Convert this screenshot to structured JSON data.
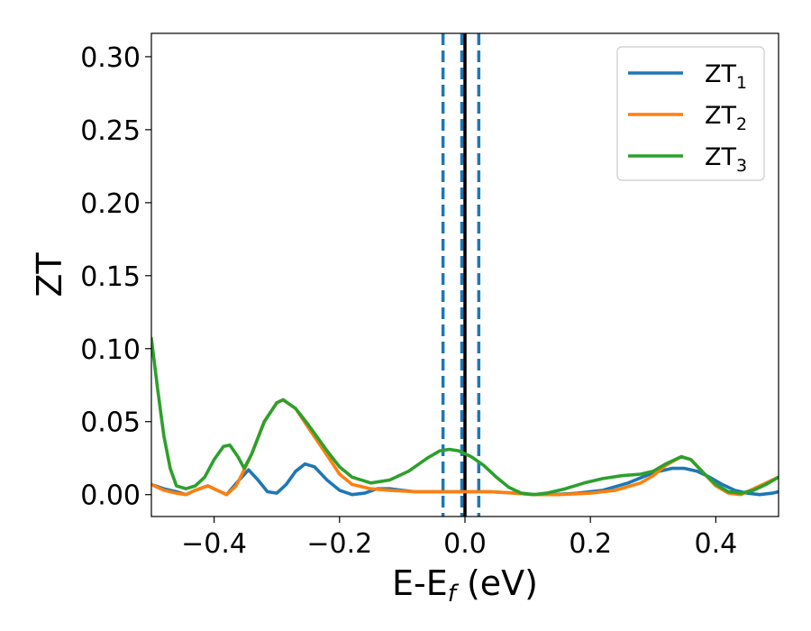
{
  "chart_data": {
    "type": "line",
    "xlabel": {
      "main": "E-E",
      "sub": "f",
      "unit": " (eV)"
    },
    "ylabel": "ZT",
    "xlim": [
      -0.5,
      0.5
    ],
    "ylim": [
      -0.015,
      0.316
    ],
    "x_ticks": [
      {
        "value": -0.4,
        "label": "−0.4"
      },
      {
        "value": -0.2,
        "label": "−0.2"
      },
      {
        "value": 0.0,
        "label": "0.0"
      },
      {
        "value": 0.2,
        "label": "0.2"
      },
      {
        "value": 0.4,
        "label": "0.4"
      }
    ],
    "y_ticks": [
      {
        "value": 0.0,
        "label": "0.00"
      },
      {
        "value": 0.05,
        "label": "0.05"
      },
      {
        "value": 0.1,
        "label": "0.10"
      },
      {
        "value": 0.15,
        "label": "0.15"
      },
      {
        "value": 0.2,
        "label": "0.20"
      },
      {
        "value": 0.25,
        "label": "0.25"
      },
      {
        "value": 0.3,
        "label": "0.30"
      }
    ],
    "grid": false,
    "legend_position": "top-right",
    "vertical_lines": [
      {
        "x": -0.035,
        "style": "dashed",
        "color": "#1f77b4"
      },
      {
        "x": -0.005,
        "style": "dashed",
        "color": "#1f77b4"
      },
      {
        "x": 0.0,
        "style": "solid",
        "color": "#000000"
      },
      {
        "x": 0.022,
        "style": "dashed",
        "color": "#1f77b4"
      }
    ],
    "series": [
      {
        "name": "ZT",
        "sub": "1",
        "color": "#1f77b4",
        "points": [
          [
            -0.5,
            0.007
          ],
          [
            -0.48,
            0.004
          ],
          [
            -0.46,
            0.002
          ],
          [
            -0.445,
            0.0
          ],
          [
            -0.43,
            0.003
          ],
          [
            -0.41,
            0.006
          ],
          [
            -0.39,
            0.002
          ],
          [
            -0.38,
            0.0
          ],
          [
            -0.36,
            0.01
          ],
          [
            -0.345,
            0.017
          ],
          [
            -0.33,
            0.01
          ],
          [
            -0.315,
            0.002
          ],
          [
            -0.3,
            0.001
          ],
          [
            -0.285,
            0.007
          ],
          [
            -0.27,
            0.016
          ],
          [
            -0.255,
            0.021
          ],
          [
            -0.24,
            0.019
          ],
          [
            -0.22,
            0.01
          ],
          [
            -0.2,
            0.003
          ],
          [
            -0.18,
            0.0
          ],
          [
            -0.16,
            0.001
          ],
          [
            -0.14,
            0.004
          ],
          [
            -0.12,
            0.004
          ],
          [
            -0.1,
            0.003
          ],
          [
            -0.08,
            0.002
          ],
          [
            -0.04,
            0.002
          ],
          [
            0.0,
            0.002
          ],
          [
            0.04,
            0.002
          ],
          [
            0.08,
            0.001
          ],
          [
            0.11,
            0.0
          ],
          [
            0.14,
            0.0
          ],
          [
            0.18,
            0.001
          ],
          [
            0.22,
            0.003
          ],
          [
            0.26,
            0.008
          ],
          [
            0.3,
            0.015
          ],
          [
            0.33,
            0.018
          ],
          [
            0.35,
            0.018
          ],
          [
            0.37,
            0.016
          ],
          [
            0.39,
            0.012
          ],
          [
            0.41,
            0.007
          ],
          [
            0.43,
            0.003
          ],
          [
            0.45,
            0.001
          ],
          [
            0.47,
            0.0
          ],
          [
            0.49,
            0.001
          ],
          [
            0.5,
            0.002
          ]
        ]
      },
      {
        "name": "ZT",
        "sub": "2",
        "color": "#ff7f0e",
        "points": [
          [
            -0.5,
            0.007
          ],
          [
            -0.48,
            0.003
          ],
          [
            -0.46,
            0.001
          ],
          [
            -0.445,
            0.0
          ],
          [
            -0.43,
            0.003
          ],
          [
            -0.41,
            0.006
          ],
          [
            -0.395,
            0.003
          ],
          [
            -0.38,
            0.0
          ],
          [
            -0.365,
            0.006
          ],
          [
            -0.352,
            0.017
          ],
          [
            -0.34,
            0.028
          ],
          [
            -0.32,
            0.05
          ],
          [
            -0.3,
            0.063
          ],
          [
            -0.29,
            0.065
          ],
          [
            -0.27,
            0.059
          ],
          [
            -0.25,
            0.046
          ],
          [
            -0.22,
            0.027
          ],
          [
            -0.2,
            0.014
          ],
          [
            -0.18,
            0.007
          ],
          [
            -0.15,
            0.004
          ],
          [
            -0.12,
            0.003
          ],
          [
            -0.08,
            0.002
          ],
          [
            -0.04,
            0.002
          ],
          [
            0.0,
            0.002
          ],
          [
            0.04,
            0.002
          ],
          [
            0.08,
            0.001
          ],
          [
            0.11,
            0.0
          ],
          [
            0.15,
            0.0
          ],
          [
            0.2,
            0.001
          ],
          [
            0.24,
            0.003
          ],
          [
            0.28,
            0.008
          ],
          [
            0.3,
            0.013
          ],
          [
            0.32,
            0.02
          ],
          [
            0.345,
            0.026
          ],
          [
            0.36,
            0.024
          ],
          [
            0.38,
            0.015
          ],
          [
            0.4,
            0.006
          ],
          [
            0.42,
            0.001
          ],
          [
            0.44,
            0.0
          ],
          [
            0.46,
            0.004
          ],
          [
            0.48,
            0.008
          ],
          [
            0.5,
            0.012
          ]
        ]
      },
      {
        "name": "ZT",
        "sub": "3",
        "color": "#2ca02c",
        "points": [
          [
            -0.5,
            0.107
          ],
          [
            -0.49,
            0.072
          ],
          [
            -0.48,
            0.04
          ],
          [
            -0.47,
            0.018
          ],
          [
            -0.46,
            0.006
          ],
          [
            -0.445,
            0.004
          ],
          [
            -0.43,
            0.006
          ],
          [
            -0.415,
            0.012
          ],
          [
            -0.4,
            0.024
          ],
          [
            -0.385,
            0.033
          ],
          [
            -0.375,
            0.034
          ],
          [
            -0.362,
            0.026
          ],
          [
            -0.352,
            0.018
          ],
          [
            -0.34,
            0.028
          ],
          [
            -0.32,
            0.05
          ],
          [
            -0.3,
            0.063
          ],
          [
            -0.29,
            0.065
          ],
          [
            -0.27,
            0.059
          ],
          [
            -0.25,
            0.048
          ],
          [
            -0.22,
            0.03
          ],
          [
            -0.2,
            0.019
          ],
          [
            -0.18,
            0.012
          ],
          [
            -0.15,
            0.008
          ],
          [
            -0.12,
            0.01
          ],
          [
            -0.09,
            0.016
          ],
          [
            -0.06,
            0.025
          ],
          [
            -0.04,
            0.03
          ],
          [
            -0.025,
            0.031
          ],
          [
            -0.01,
            0.03
          ],
          [
            0.01,
            0.026
          ],
          [
            0.03,
            0.02
          ],
          [
            0.05,
            0.012
          ],
          [
            0.07,
            0.005
          ],
          [
            0.09,
            0.001
          ],
          [
            0.11,
            0.0
          ],
          [
            0.13,
            0.001
          ],
          [
            0.16,
            0.004
          ],
          [
            0.19,
            0.008
          ],
          [
            0.22,
            0.011
          ],
          [
            0.25,
            0.013
          ],
          [
            0.28,
            0.014
          ],
          [
            0.3,
            0.016
          ],
          [
            0.32,
            0.021
          ],
          [
            0.345,
            0.026
          ],
          [
            0.36,
            0.024
          ],
          [
            0.38,
            0.015
          ],
          [
            0.4,
            0.007
          ],
          [
            0.42,
            0.002
          ],
          [
            0.44,
            0.001
          ],
          [
            0.46,
            0.003
          ],
          [
            0.48,
            0.007
          ],
          [
            0.5,
            0.012
          ]
        ]
      }
    ]
  }
}
